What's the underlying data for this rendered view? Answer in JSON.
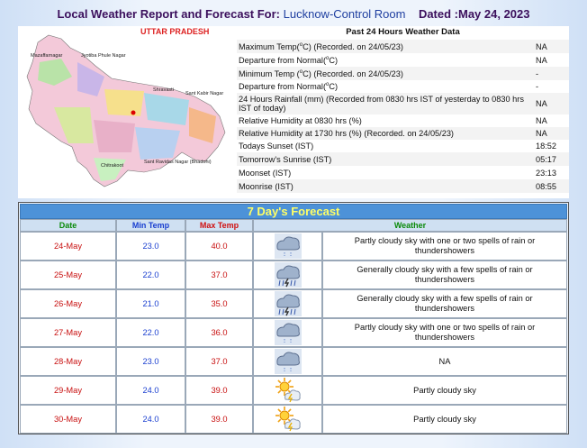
{
  "header": {
    "title": "Local Weather Report and Forecast For:",
    "station": "Lucknow-Control Room",
    "dated": "Dated :May 24, 2023"
  },
  "map": {
    "title": "UTTAR PRADESH",
    "places": [
      "Mazaffarnagar",
      "Jyotiba Phule Nagar",
      "Shravasti",
      "Sant Kabir Nagar",
      "Chitrakoot",
      "Sant Ravidas Nagar (Bhadohi)"
    ]
  },
  "past_24_hours": {
    "title": "Past 24 Hours Weather Data",
    "rows": [
      {
        "label": [
          "Maximum Temp(",
          "o",
          "C) (Recorded. on 24/05/23)"
        ],
        "value": "NA"
      },
      {
        "label": [
          "Departure from Normal(",
          "o",
          "C)"
        ],
        "value": "NA"
      },
      {
        "label": [
          "Minimum Temp (",
          "o",
          "C) (Recorded. on 24/05/23)"
        ],
        "value": "-"
      },
      {
        "label": [
          "Departure from Normal(",
          "o",
          "C)"
        ],
        "value": "-"
      },
      {
        "label": "24 Hours Rainfall (mm) (Recorded from 0830 hrs IST of yesterday to 0830 hrs IST of today)",
        "value": "NA"
      },
      {
        "label": "Relative Humidity at 0830 hrs (%)",
        "value": "NA"
      },
      {
        "label": "Relative Humidity at 1730 hrs (%) (Recorded. on 24/05/23)",
        "value": "NA"
      },
      {
        "label": "Todays Sunset (IST)",
        "value": "18:52"
      },
      {
        "label": "Tomorrow's Sunrise (IST)",
        "value": "05:17"
      },
      {
        "label": "Moonset (IST)",
        "value": "23:13"
      },
      {
        "label": "Moonrise (IST)",
        "value": "08:55"
      }
    ]
  },
  "forecast": {
    "title": "7 Day's Forecast",
    "columns": [
      "Date",
      "Min Temp",
      "Max Temp",
      "Weather"
    ],
    "rows": [
      {
        "date": "24-May",
        "min_temp": "23.0",
        "max_temp": "40.0",
        "icon": "light-rain",
        "weather": "Partly cloudy sky with one or two spells of rain or thundershowers"
      },
      {
        "date": "25-May",
        "min_temp": "22.0",
        "max_temp": "37.0",
        "icon": "thunderstorm",
        "weather": "Generally cloudy sky with a few spells of rain or thundershowers"
      },
      {
        "date": "26-May",
        "min_temp": "21.0",
        "max_temp": "35.0",
        "icon": "thunderstorm",
        "weather": "Generally cloudy sky with a few spells of rain or thundershowers"
      },
      {
        "date": "27-May",
        "min_temp": "22.0",
        "max_temp": "36.0",
        "icon": "light-rain",
        "weather": "Partly cloudy sky with one or two spells of rain or thundershowers"
      },
      {
        "date": "28-May",
        "min_temp": "23.0",
        "max_temp": "37.0",
        "icon": "light-rain",
        "weather": "NA"
      },
      {
        "date": "29-May",
        "min_temp": "24.0",
        "max_temp": "39.0",
        "icon": "partly-cloudy",
        "weather": "Partly cloudy sky"
      },
      {
        "date": "30-May",
        "min_temp": "24.0",
        "max_temp": "39.0",
        "icon": "partly-cloudy",
        "weather": "Partly cloudy sky"
      }
    ]
  }
}
